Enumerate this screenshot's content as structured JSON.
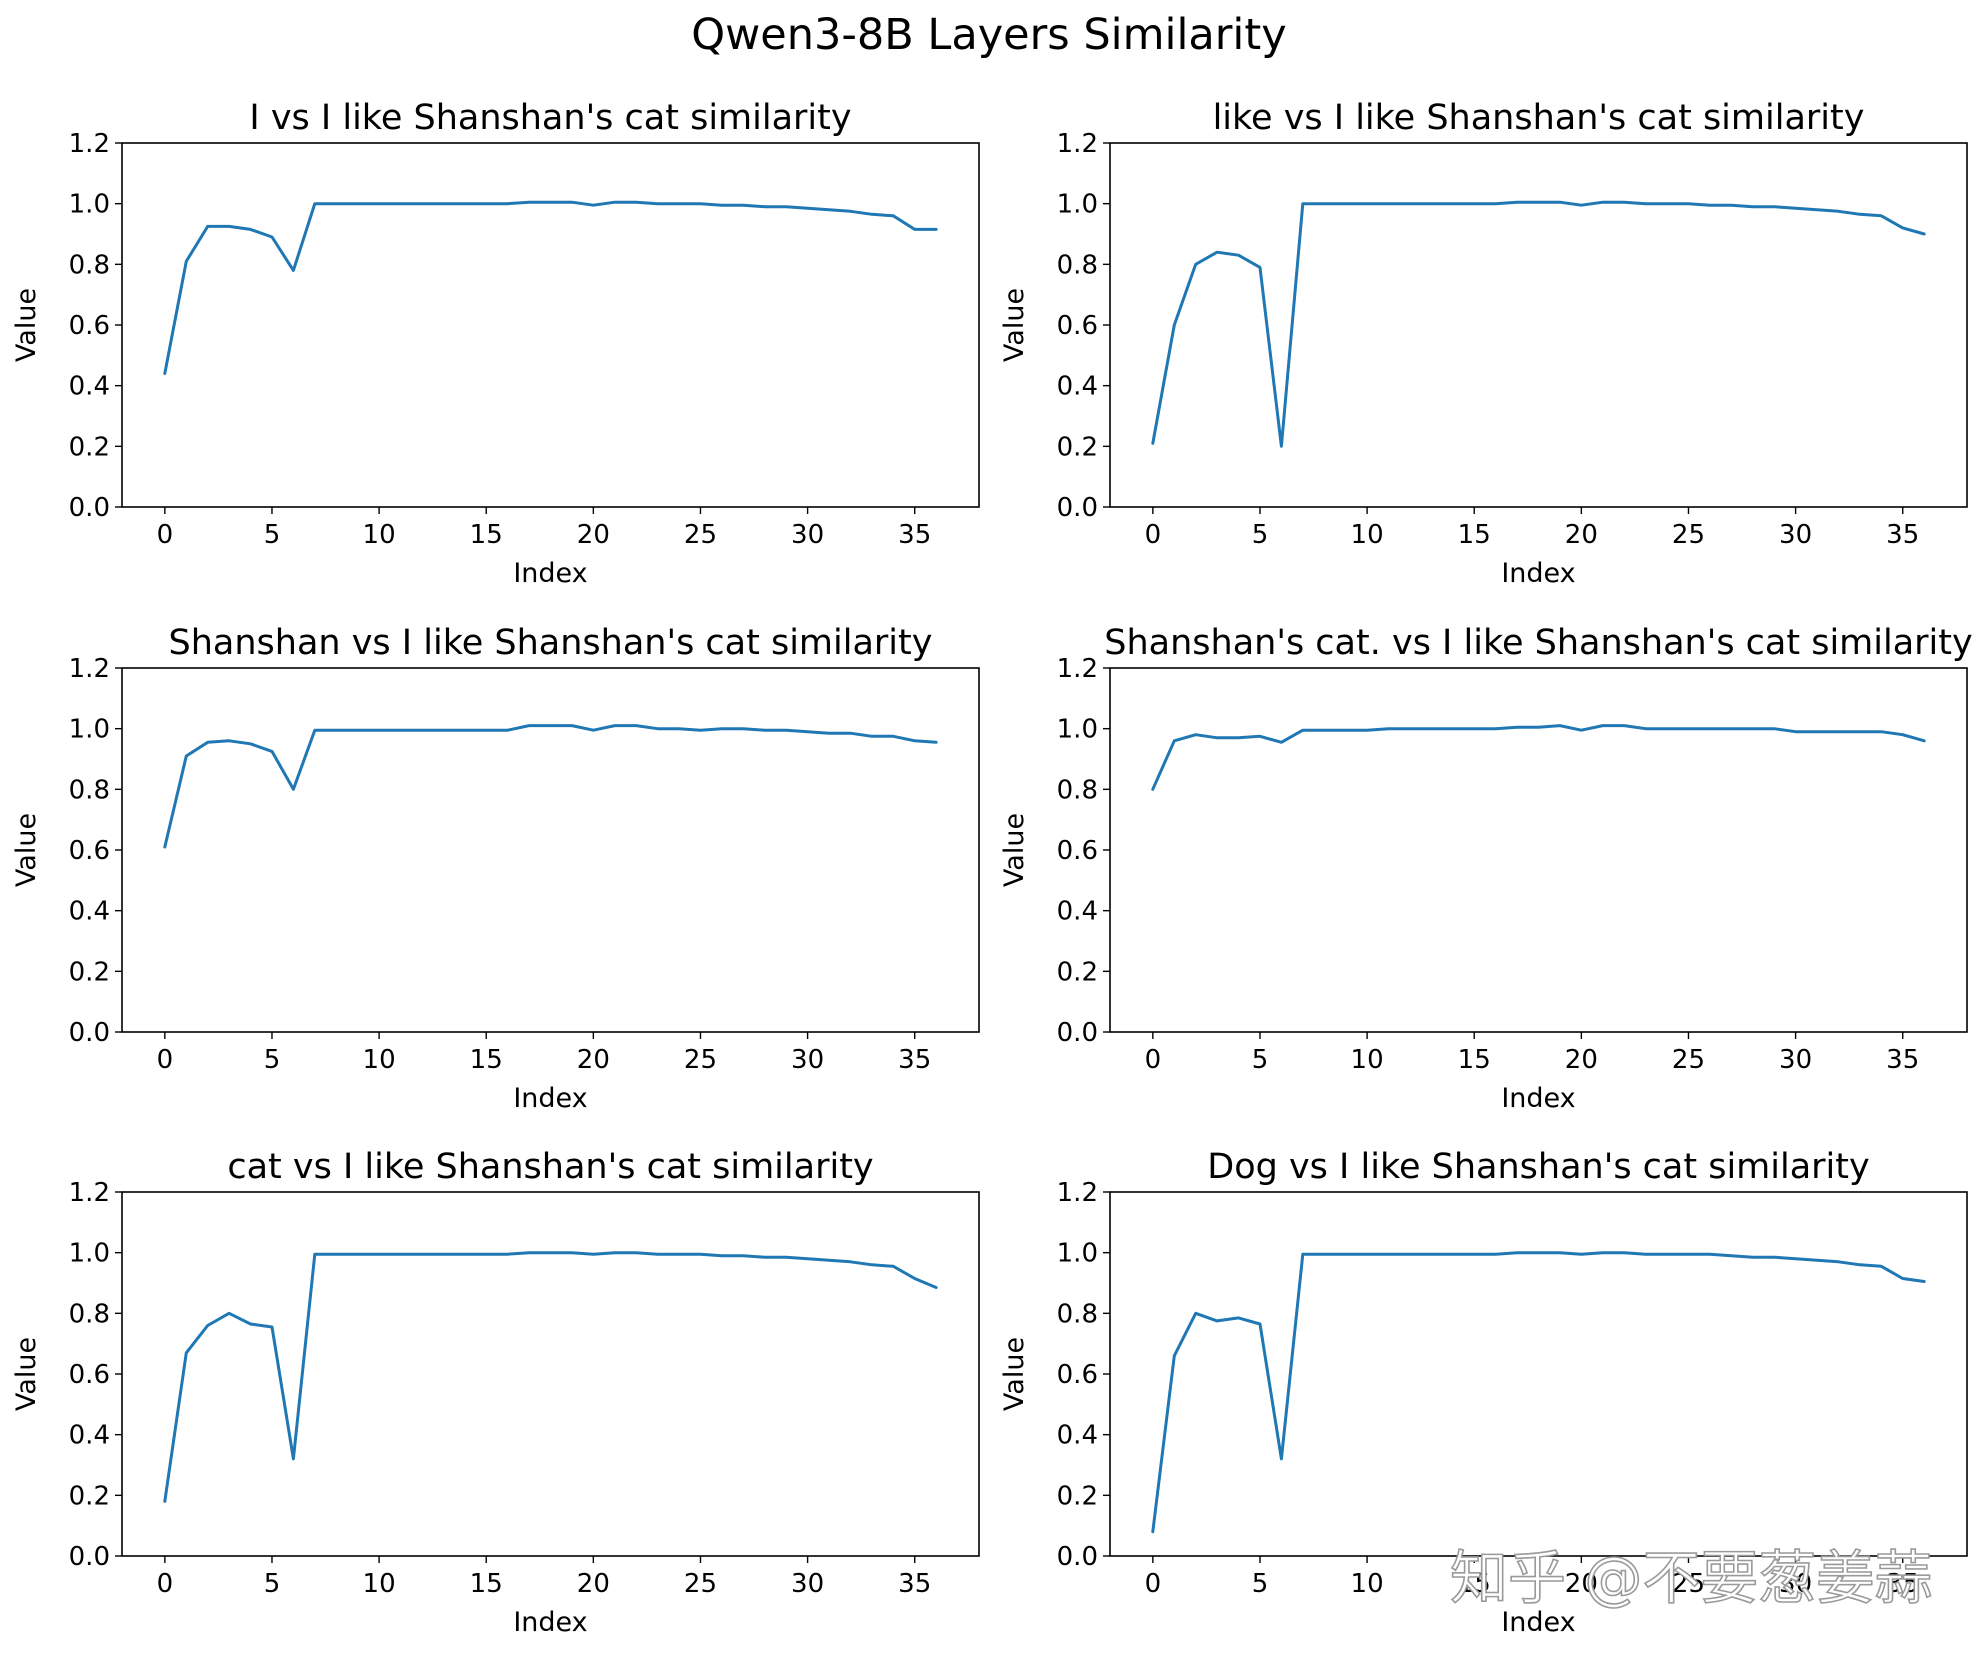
{
  "figure": {
    "suptitle": "Qwen3-8B Layers Similarity",
    "watermark": "知乎 @不要葱姜蒜",
    "line_color": "#1f77b4"
  },
  "chart_data": [
    {
      "type": "line",
      "title": "I vs I like Shanshan's cat similarity",
      "xlabel": "Index",
      "ylabel": "Value",
      "xlim": [
        -2,
        38
      ],
      "ylim": [
        0,
        1.2
      ],
      "xticks": [
        0,
        5,
        10,
        15,
        20,
        25,
        30,
        35
      ],
      "yticks": [
        "0.0",
        "0.2",
        "0.4",
        "0.6",
        "0.8",
        "1.0",
        "1.2"
      ],
      "x": [
        0,
        1,
        2,
        3,
        4,
        5,
        6,
        7,
        8,
        9,
        10,
        11,
        12,
        13,
        14,
        15,
        16,
        17,
        18,
        19,
        20,
        21,
        22,
        23,
        24,
        25,
        26,
        27,
        28,
        29,
        30,
        31,
        32,
        33,
        34,
        35,
        36
      ],
      "y": [
        0.44,
        0.81,
        0.925,
        0.925,
        0.915,
        0.89,
        0.78,
        1.0,
        1.0,
        1.0,
        1.0,
        1.0,
        1.0,
        1.0,
        1.0,
        1.0,
        1.0,
        1.005,
        1.005,
        1.005,
        0.995,
        1.005,
        1.005,
        1.0,
        1.0,
        1.0,
        0.995,
        0.995,
        0.99,
        0.99,
        0.985,
        0.98,
        0.975,
        0.965,
        0.96,
        0.915,
        0.915
      ]
    },
    {
      "type": "line",
      "title": "like vs I like Shanshan's cat similarity",
      "xlabel": "Index",
      "ylabel": "Value",
      "xlim": [
        -2,
        38
      ],
      "ylim": [
        0,
        1.2
      ],
      "xticks": [
        0,
        5,
        10,
        15,
        20,
        25,
        30,
        35
      ],
      "yticks": [
        "0.0",
        "0.2",
        "0.4",
        "0.6",
        "0.8",
        "1.0",
        "1.2"
      ],
      "x": [
        0,
        1,
        2,
        3,
        4,
        5,
        6,
        7,
        8,
        9,
        10,
        11,
        12,
        13,
        14,
        15,
        16,
        17,
        18,
        19,
        20,
        21,
        22,
        23,
        24,
        25,
        26,
        27,
        28,
        29,
        30,
        31,
        32,
        33,
        34,
        35,
        36
      ],
      "y": [
        0.21,
        0.6,
        0.8,
        0.84,
        0.83,
        0.79,
        0.2,
        1.0,
        1.0,
        1.0,
        1.0,
        1.0,
        1.0,
        1.0,
        1.0,
        1.0,
        1.0,
        1.005,
        1.005,
        1.005,
        0.995,
        1.005,
        1.005,
        1.0,
        1.0,
        1.0,
        0.995,
        0.995,
        0.99,
        0.99,
        0.985,
        0.98,
        0.975,
        0.965,
        0.96,
        0.92,
        0.9
      ]
    },
    {
      "type": "line",
      "title": "Shanshan vs I like Shanshan's cat similarity",
      "xlabel": "Index",
      "ylabel": "Value",
      "xlim": [
        -2,
        38
      ],
      "ylim": [
        0,
        1.2
      ],
      "xticks": [
        0,
        5,
        10,
        15,
        20,
        25,
        30,
        35
      ],
      "yticks": [
        "0.0",
        "0.2",
        "0.4",
        "0.6",
        "0.8",
        "1.0",
        "1.2"
      ],
      "x": [
        0,
        1,
        2,
        3,
        4,
        5,
        6,
        7,
        8,
        9,
        10,
        11,
        12,
        13,
        14,
        15,
        16,
        17,
        18,
        19,
        20,
        21,
        22,
        23,
        24,
        25,
        26,
        27,
        28,
        29,
        30,
        31,
        32,
        33,
        34,
        35,
        36
      ],
      "y": [
        0.61,
        0.91,
        0.955,
        0.96,
        0.95,
        0.925,
        0.8,
        0.995,
        0.995,
        0.995,
        0.995,
        0.995,
        0.995,
        0.995,
        0.995,
        0.995,
        0.995,
        1.01,
        1.01,
        1.01,
        0.995,
        1.01,
        1.01,
        1.0,
        1.0,
        0.995,
        1.0,
        1.0,
        0.995,
        0.995,
        0.99,
        0.985,
        0.985,
        0.975,
        0.975,
        0.96,
        0.955
      ]
    },
    {
      "type": "line",
      "title": "Shanshan's cat. vs I like Shanshan's cat similarity",
      "xlabel": "Index",
      "ylabel": "Value",
      "xlim": [
        -2,
        38
      ],
      "ylim": [
        0,
        1.2
      ],
      "xticks": [
        0,
        5,
        10,
        15,
        20,
        25,
        30,
        35
      ],
      "yticks": [
        "0.0",
        "0.2",
        "0.4",
        "0.6",
        "0.8",
        "1.0",
        "1.2"
      ],
      "x": [
        0,
        1,
        2,
        3,
        4,
        5,
        6,
        7,
        8,
        9,
        10,
        11,
        12,
        13,
        14,
        15,
        16,
        17,
        18,
        19,
        20,
        21,
        22,
        23,
        24,
        25,
        26,
        27,
        28,
        29,
        30,
        31,
        32,
        33,
        34,
        35,
        36
      ],
      "y": [
        0.8,
        0.96,
        0.98,
        0.97,
        0.97,
        0.975,
        0.955,
        0.995,
        0.995,
        0.995,
        0.995,
        1.0,
        1.0,
        1.0,
        1.0,
        1.0,
        1.0,
        1.005,
        1.005,
        1.01,
        0.995,
        1.01,
        1.01,
        1.0,
        1.0,
        1.0,
        1.0,
        1.0,
        1.0,
        1.0,
        0.99,
        0.99,
        0.99,
        0.99,
        0.99,
        0.98,
        0.96
      ]
    },
    {
      "type": "line",
      "title": "cat vs I like Shanshan's cat similarity",
      "xlabel": "Index",
      "ylabel": "Value",
      "xlim": [
        -2,
        38
      ],
      "ylim": [
        0,
        1.2
      ],
      "xticks": [
        0,
        5,
        10,
        15,
        20,
        25,
        30,
        35
      ],
      "yticks": [
        "0.0",
        "0.2",
        "0.4",
        "0.6",
        "0.8",
        "1.0",
        "1.2"
      ],
      "x": [
        0,
        1,
        2,
        3,
        4,
        5,
        6,
        7,
        8,
        9,
        10,
        11,
        12,
        13,
        14,
        15,
        16,
        17,
        18,
        19,
        20,
        21,
        22,
        23,
        24,
        25,
        26,
        27,
        28,
        29,
        30,
        31,
        32,
        33,
        34,
        35,
        36
      ],
      "y": [
        0.18,
        0.67,
        0.76,
        0.8,
        0.765,
        0.755,
        0.32,
        0.995,
        0.995,
        0.995,
        0.995,
        0.995,
        0.995,
        0.995,
        0.995,
        0.995,
        0.995,
        1.0,
        1.0,
        1.0,
        0.995,
        1.0,
        1.0,
        0.995,
        0.995,
        0.995,
        0.99,
        0.99,
        0.985,
        0.985,
        0.98,
        0.975,
        0.97,
        0.96,
        0.955,
        0.915,
        0.885
      ]
    },
    {
      "type": "line",
      "title": "Dog vs I like Shanshan's cat similarity",
      "xlabel": "Index",
      "ylabel": "Value",
      "xlim": [
        -2,
        38
      ],
      "ylim": [
        0,
        1.2
      ],
      "xticks": [
        0,
        5,
        10,
        15,
        20,
        25,
        30,
        35
      ],
      "yticks": [
        "0.0",
        "0.2",
        "0.4",
        "0.6",
        "0.8",
        "1.0",
        "1.2"
      ],
      "x": [
        0,
        1,
        2,
        3,
        4,
        5,
        6,
        7,
        8,
        9,
        10,
        11,
        12,
        13,
        14,
        15,
        16,
        17,
        18,
        19,
        20,
        21,
        22,
        23,
        24,
        25,
        26,
        27,
        28,
        29,
        30,
        31,
        32,
        33,
        34,
        35,
        36
      ],
      "y": [
        0.08,
        0.66,
        0.8,
        0.775,
        0.785,
        0.765,
        0.32,
        0.995,
        0.995,
        0.995,
        0.995,
        0.995,
        0.995,
        0.995,
        0.995,
        0.995,
        0.995,
        1.0,
        1.0,
        1.0,
        0.995,
        1.0,
        1.0,
        0.995,
        0.995,
        0.995,
        0.995,
        0.99,
        0.985,
        0.985,
        0.98,
        0.975,
        0.97,
        0.96,
        0.955,
        0.915,
        0.905
      ]
    }
  ]
}
